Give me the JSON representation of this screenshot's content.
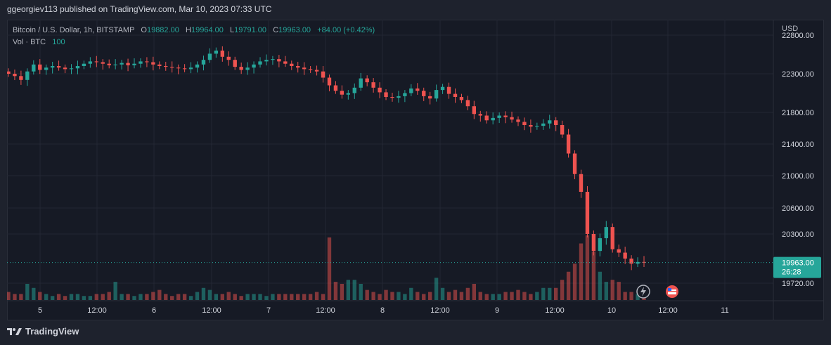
{
  "header": {
    "published_text": "ggeorgiev113 published on TradingView.com, Mar 10, 2023 07:33 UTC"
  },
  "legend": {
    "symbol_text": "Bitcoin / U.S. Dollar, 1h, BITSTAMP",
    "o_label": "O",
    "o_value": "19882.00",
    "h_label": "H",
    "h_value": "19964.00",
    "l_label": "L",
    "l_value": "19791.00",
    "c_label": "C",
    "c_value": "19963.00",
    "change": "+84.00 (+0.42%)",
    "vol_label": "Vol · BTC",
    "vol_value": "100"
  },
  "price_axis": {
    "currency": "USD",
    "last_price": "19963.00",
    "countdown": "26:28"
  },
  "footer": {
    "brand": "TradingView"
  },
  "colors": {
    "up": "#26a69a",
    "down": "#ef5350",
    "background": "#161a25",
    "grid": "#232733",
    "text": "#d1d4dc"
  },
  "chart_data": {
    "type": "candlestick",
    "symbol": "Bitcoin / U.S. Dollar",
    "interval": "1h",
    "exchange": "BITSTAMP",
    "y_ticks": [
      22800,
      22300,
      21800,
      21400,
      21000,
      20600,
      20300,
      19720
    ],
    "y_tick_labels": [
      "22800.00",
      "22300.00",
      "21800.00",
      "21400.00",
      "21000.00",
      "20600.00",
      "20300.00",
      "19720.00"
    ],
    "x_tick_labels": [
      "5",
      "12:00",
      "6",
      "12:00",
      "7",
      "12:00",
      "8",
      "12:00",
      "9",
      "12:00",
      "10",
      "12:00",
      "11"
    ],
    "last_price": 19963,
    "close_series": [
      22300,
      22270,
      22220,
      22330,
      22420,
      22350,
      22380,
      22400,
      22380,
      22360,
      22370,
      22400,
      22430,
      22460,
      22450,
      22430,
      22410,
      22420,
      22440,
      22410,
      22430,
      22460,
      22450,
      22420,
      22400,
      22390,
      22380,
      22370,
      22360,
      22380,
      22420,
      22480,
      22560,
      22600,
      22520,
      22480,
      22390,
      22350,
      22380,
      22420,
      22460,
      22480,
      22490,
      22460,
      22430,
      22400,
      22380,
      22360,
      22350,
      22330,
      22250,
      22150,
      22080,
      22030,
      22050,
      22120,
      22240,
      22190,
      22120,
      22060,
      22000,
      21990,
      22010,
      22050,
      22110,
      22080,
      22010,
      21980,
      22090,
      22130,
      22040,
      22000,
      21960,
      21880,
      21780,
      21760,
      21700,
      21730,
      21760,
      21740,
      21710,
      21680,
      21640,
      21620,
      21630,
      21660,
      21700,
      21640,
      21520,
      21280,
      21020,
      20800,
      20300,
      20100,
      20250,
      20380,
      20120,
      20080,
      20010,
      19950,
      19970,
      19963
    ],
    "volume_series": [
      0.4,
      0.3,
      0.3,
      0.8,
      0.6,
      0.4,
      0.3,
      0.2,
      0.3,
      0.2,
      0.3,
      0.3,
      0.2,
      0.2,
      0.3,
      0.3,
      0.4,
      0.9,
      0.3,
      0.3,
      0.2,
      0.3,
      0.3,
      0.4,
      0.5,
      0.3,
      0.2,
      0.3,
      0.3,
      0.2,
      0.4,
      0.6,
      0.5,
      0.3,
      0.3,
      0.4,
      0.3,
      0.2,
      0.3,
      0.3,
      0.3,
      0.2,
      0.3,
      0.3,
      0.3,
      0.3,
      0.3,
      0.3,
      0.3,
      0.4,
      0.3,
      3.1,
      0.9,
      0.8,
      1.0,
      1.0,
      0.8,
      0.5,
      0.4,
      0.3,
      0.5,
      0.4,
      0.4,
      0.3,
      0.6,
      0.4,
      0.3,
      0.4,
      1.1,
      0.6,
      0.4,
      0.5,
      0.4,
      0.6,
      0.8,
      0.4,
      0.3,
      0.3,
      0.3,
      0.4,
      0.4,
      0.5,
      0.4,
      0.3,
      0.4,
      0.6,
      0.6,
      0.6,
      1.0,
      1.4,
      1.8,
      2.8,
      3.2,
      2.4,
      1.4,
      0.9,
      1.0,
      0.9,
      0.4,
      0.4,
      0.3,
      0.3
    ]
  }
}
